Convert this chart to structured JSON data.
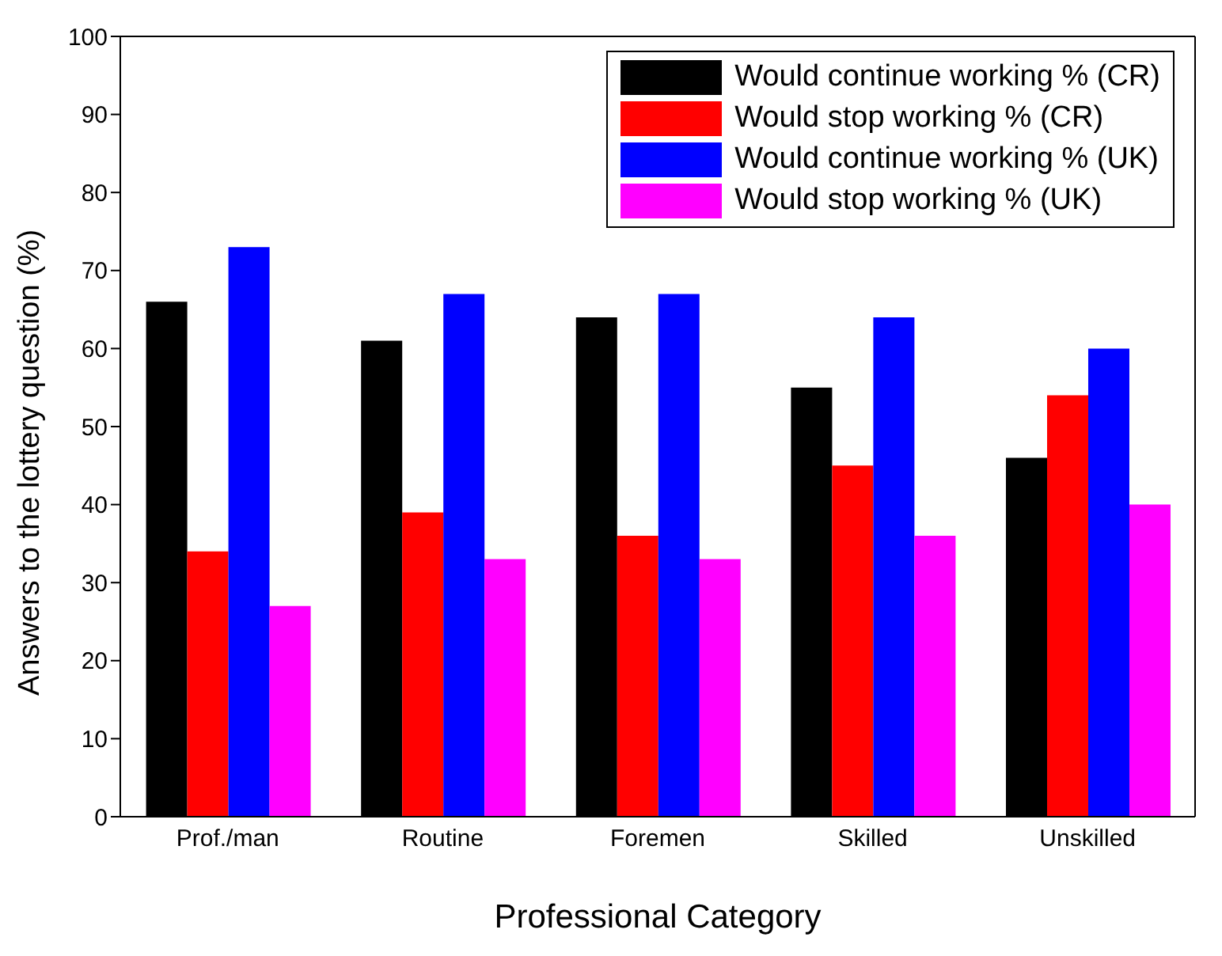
{
  "chart_data": {
    "type": "bar",
    "xlabel": "Professional Category",
    "ylabel": "Answers to the lottery question (%)",
    "categories": [
      "Prof./man",
      "Routine",
      "Foremen",
      "Skilled",
      "Unskilled"
    ],
    "series": [
      {
        "name": "Would continue working % (CR)",
        "color": "#000000",
        "values": [
          66,
          61,
          64,
          55,
          46
        ]
      },
      {
        "name": "Would stop working % (CR)",
        "color": "#ff0000",
        "values": [
          34,
          39,
          36,
          45,
          54
        ]
      },
      {
        "name": "Would continue working % (UK)",
        "color": "#0000ff",
        "values": [
          73,
          67,
          67,
          64,
          60
        ]
      },
      {
        "name": "Would stop working % (UK)",
        "color": "#ff00ff",
        "values": [
          27,
          33,
          33,
          36,
          40
        ]
      }
    ],
    "ylim": [
      0,
      100
    ],
    "yticks": [
      0,
      10,
      20,
      30,
      40,
      50,
      60,
      70,
      80,
      90,
      100
    ],
    "grid": false,
    "legend": "top right"
  }
}
